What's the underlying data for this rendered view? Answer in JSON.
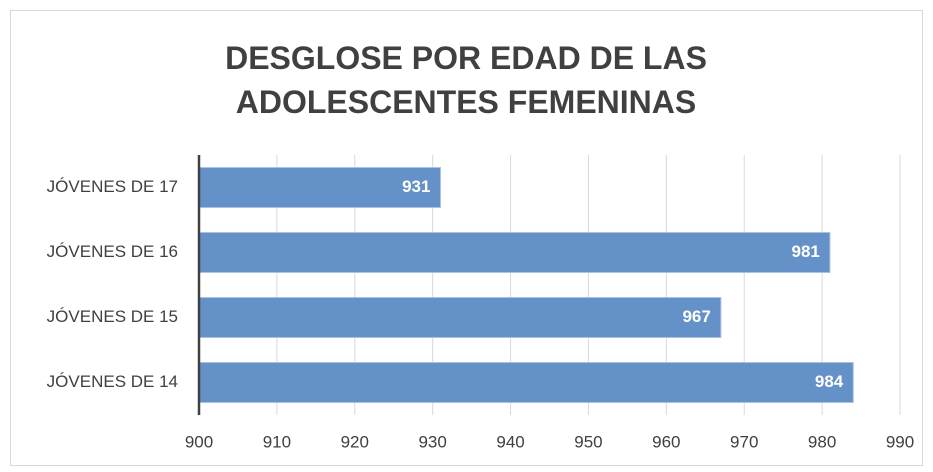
{
  "chart_data": {
    "type": "bar",
    "orientation": "horizontal",
    "title": "DESGLOSE POR EDAD DE LAS ADOLESCENTES FEMENINAS",
    "categories": [
      "JÓVENES DE 17",
      "JÓVENES DE 16",
      "JÓVENES DE 15",
      "JÓVENES DE 14"
    ],
    "values": [
      931,
      981,
      967,
      984
    ],
    "color": "#6591c9",
    "xlim": [
      900,
      990
    ],
    "xticks": [
      900,
      910,
      920,
      930,
      940,
      950,
      960,
      970,
      980,
      990
    ],
    "grid": true
  }
}
